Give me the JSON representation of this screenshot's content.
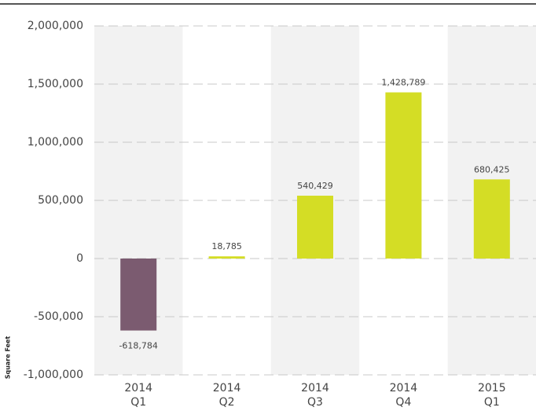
{
  "chart_data": {
    "type": "bar",
    "y_label": "Square Feet",
    "categories": [
      [
        "2014",
        "Q1"
      ],
      [
        "2014",
        "Q2"
      ],
      [
        "2014",
        "Q3"
      ],
      [
        "2014",
        "Q4"
      ],
      [
        "2015",
        "Q1"
      ]
    ],
    "values": [
      -618784,
      18785,
      540429,
      1428789,
      680425
    ],
    "value_labels": [
      "-618,784",
      "18,785",
      "540,429",
      "1,428,789",
      "680,425"
    ],
    "color": "#d4dd25",
    "negative_color": "#7b5b70",
    "ylim": [
      -1000000,
      2000000
    ],
    "yticks": [
      {
        "value": -1000000,
        "label": "-1,000,000"
      },
      {
        "value": -500000,
        "label": "-500,000"
      },
      0,
      {
        "value": 500000,
        "label": "500,000"
      },
      {
        "value": 1000000,
        "label": "1,000,000"
      },
      {
        "value": 1500000,
        "label": "1,500,000"
      },
      {
        "value": 2000000,
        "label": "2,000,000"
      }
    ],
    "grid": true
  }
}
